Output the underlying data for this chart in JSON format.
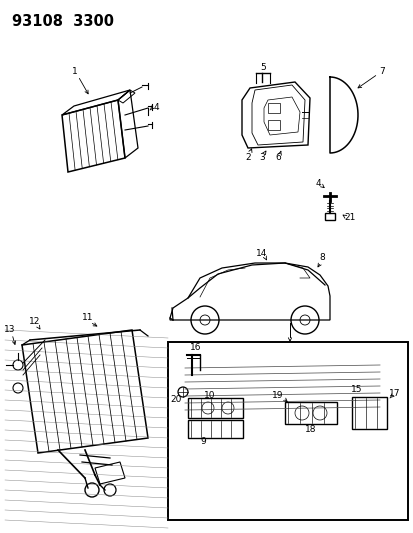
{
  "background_color": "#ffffff",
  "title_text": "93108  3300",
  "fig_width": 4.14,
  "fig_height": 5.33,
  "dpi": 100,
  "label_fontsize": 6.5,
  "title_fontsize": 10.5
}
